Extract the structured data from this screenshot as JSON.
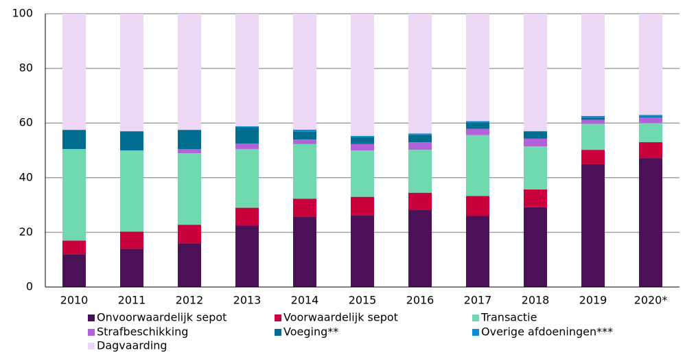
{
  "chart_data": {
    "type": "stacked_bar",
    "categories": [
      "2010",
      "2011",
      "2012",
      "2013",
      "2014",
      "2015",
      "2016",
      "2017",
      "2018",
      "2019",
      "2020*"
    ],
    "series": [
      {
        "name": "Onvoorwaardelijk sepot",
        "color": "#4a1157",
        "values": [
          12,
          14,
          16,
          22.5,
          25.8,
          26.3,
          28.3,
          26,
          29.2,
          45,
          47.2
        ]
      },
      {
        "name": "Voorwaardelijk sepot",
        "color": "#c8003c",
        "values": [
          5,
          6.3,
          6.8,
          6.5,
          6.5,
          6.7,
          6.2,
          7.3,
          6.5,
          5.2,
          5.8
        ]
      },
      {
        "name": "Transactie",
        "color": "#70d9b0",
        "values": [
          33.5,
          29.7,
          26.2,
          21.5,
          20,
          17,
          15.7,
          22.3,
          15.8,
          9.5,
          7
        ]
      },
      {
        "name": "Strafbeschikking",
        "color": "#b262d8",
        "values": [
          0,
          0,
          1.5,
          2,
          1.7,
          2.3,
          2.8,
          2.3,
          2.8,
          1.5,
          2
        ]
      },
      {
        "name": "Voeging**",
        "color": "#006d8f",
        "values": [
          7,
          7,
          7,
          6,
          2.8,
          2.5,
          2.7,
          2.3,
          2.5,
          0.8,
          0.5
        ]
      },
      {
        "name": "Overige afdoeningen***",
        "color": "#0b8bd8",
        "values": [
          0,
          0,
          0,
          0.3,
          0.8,
          0.5,
          0.5,
          0.5,
          0.3,
          0.6,
          0.5
        ]
      },
      {
        "name": "Dagvaarding",
        "color": "#ecd8f5",
        "values": [
          42.5,
          43,
          42.5,
          41.2,
          42.4,
          44.7,
          43.8,
          39.3,
          42.9,
          37.4,
          37
        ]
      }
    ],
    "ylim": [
      0,
      100
    ],
    "yticks": [
      0,
      20,
      40,
      60,
      80,
      100
    ],
    "grid": true
  }
}
